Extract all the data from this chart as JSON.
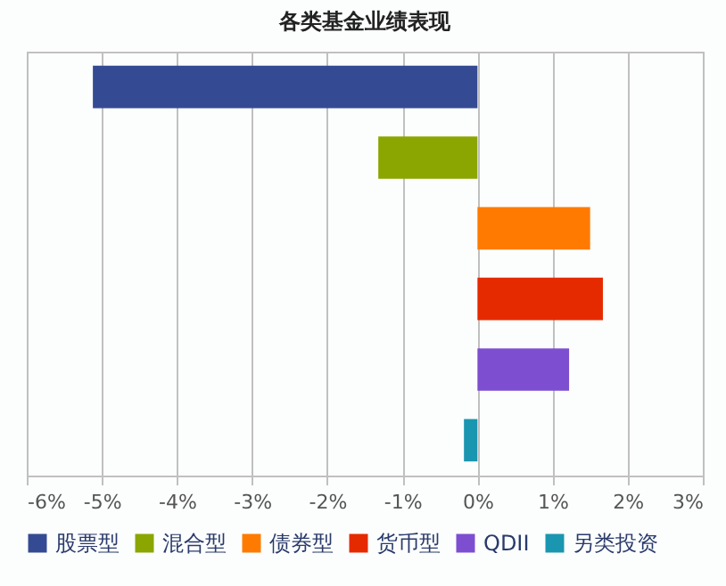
{
  "chart_data": {
    "type": "bar",
    "orientation": "horizontal",
    "title": "各类基金业绩表现",
    "categories": [
      null,
      null,
      null,
      null,
      null,
      null
    ],
    "series": [
      {
        "name": "股票型",
        "color": "#344b93",
        "values": [
          -5.12,
          null,
          null,
          null,
          null,
          null
        ]
      },
      {
        "name": "混合型",
        "color": "#8ba600",
        "values": [
          null,
          -1.32,
          null,
          null,
          null,
          null
        ]
      },
      {
        "name": "债券型",
        "color": "#ff7a00",
        "values": [
          null,
          null,
          1.5,
          null,
          null,
          null
        ]
      },
      {
        "name": "货币型",
        "color": "#e62a00",
        "values": [
          null,
          null,
          null,
          1.67,
          null,
          null
        ]
      },
      {
        "name": "QDII",
        "color": "#7d4fd0",
        "values": [
          null,
          null,
          null,
          null,
          1.22,
          null
        ]
      },
      {
        "name": "另类投资",
        "color": "#1b96b0",
        "values": [
          null,
          null,
          null,
          null,
          null,
          -0.18
        ]
      }
    ],
    "xlim": [
      -6,
      3
    ],
    "xticks": [
      {
        "value": -6,
        "label": "-6%"
      },
      {
        "value": -5,
        "label": "-5%"
      },
      {
        "value": -4,
        "label": "-4%"
      },
      {
        "value": -3,
        "label": "-3%"
      },
      {
        "value": -2,
        "label": "-2%"
      },
      {
        "value": -1,
        "label": "-1%"
      },
      {
        "value": 0,
        "label": "0%"
      },
      {
        "value": 1,
        "label": "1%"
      },
      {
        "value": 2,
        "label": "2%"
      },
      {
        "value": 3,
        "label": "3%"
      }
    ],
    "grid": "x",
    "legend": "bottom",
    "tick_labels": "x"
  }
}
